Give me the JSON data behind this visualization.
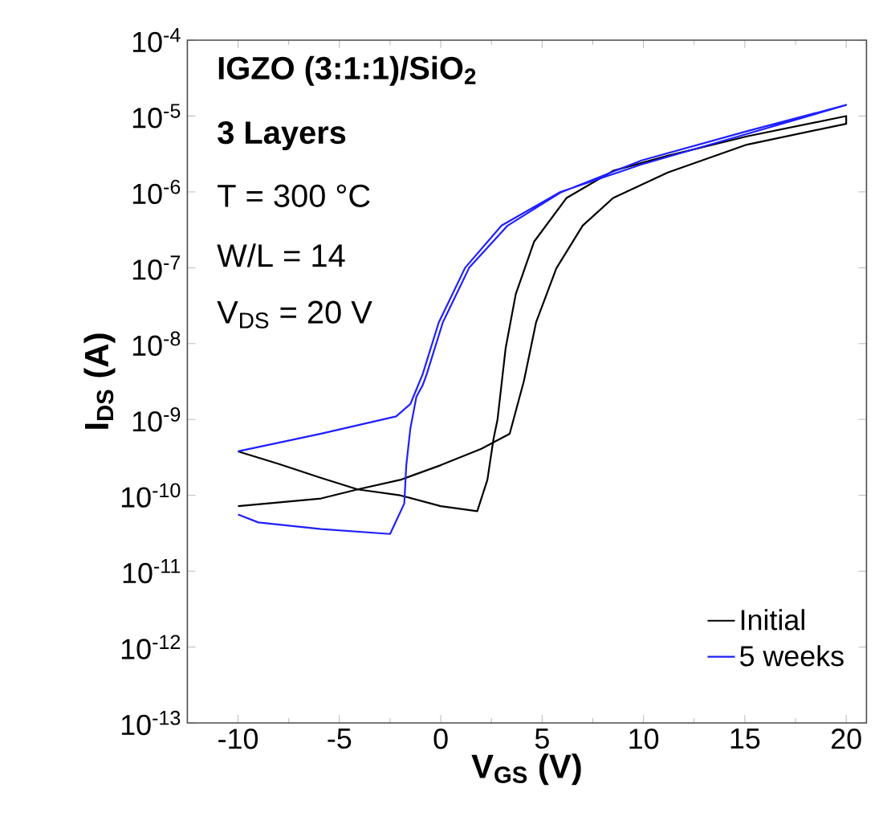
{
  "chart_data": {
    "type": "line",
    "xlabel": "**V$_{GS}$ (V)**",
    "ylabel": "**I$_{DS}$ (A)**",
    "annotations": [
      "**IGZO (3:1:1)/SiO$_{2}$**",
      "**3 Layers**",
      "T = 300 °C",
      "W/L = 14",
      "V$_{DS}$ = 20 V"
    ],
    "xlim": [
      -12.5,
      21
    ],
    "xticks": [
      -10,
      -5,
      0,
      5,
      10,
      15,
      20
    ],
    "ylim": [
      1e-13,
      0.0001
    ],
    "log": "y",
    "yticks": [
      {
        "value": 1e-13,
        "label": "10$^{-13}$"
      },
      {
        "value": 1e-12,
        "label": "10$^{-12}$"
      },
      {
        "value": 1e-11,
        "label": "10$^{-11}$"
      },
      {
        "value": 1e-10,
        "label": "10$^{-10}$"
      },
      {
        "value": 1e-09,
        "label": "10$^{-9}$"
      },
      {
        "value": 1e-08,
        "label": "10$^{-8}$"
      },
      {
        "value": 1e-07,
        "label": "10$^{-7}$"
      },
      {
        "value": 1e-06,
        "label": "10$^{-6}$"
      },
      {
        "value": 1e-05,
        "label": "10$^{-5}$"
      },
      {
        "value": 0.0001,
        "label": "10$^{-4}$"
      }
    ],
    "legend": "bottom right",
    "series": [
      {
        "name": "Initial",
        "color": "#000000",
        "x": [
          -10,
          -5.9,
          -4.1,
          -2.0,
          0,
          2.0,
          3.4,
          4.1,
          4.7,
          5.7,
          7.0,
          8.5,
          11.2,
          15.1,
          20,
          20,
          15.1,
          11.2,
          8.5,
          6.2,
          4.6,
          3.7,
          3.2,
          2.8,
          2.6,
          2.3,
          1.8,
          0,
          -2.0,
          -4.1,
          -5.9,
          -8.0,
          -10
        ],
        "values": [
          7.2e-11,
          9.1e-11,
          1.2e-10,
          1.6e-10,
          2.5e-10,
          4.1e-10,
          6.5e-10,
          3.2e-09,
          1.9e-08,
          9.8e-08,
          3.6e-07,
          8.3e-07,
          1.8e-06,
          4.2e-06,
          7.9e-06,
          1e-05,
          5.4e-06,
          3e-06,
          1.9e-06,
          8.3e-07,
          2.2e-07,
          4.5e-08,
          8.7e-09,
          1e-09,
          5.5e-10,
          1.6e-10,
          6.2e-11,
          7.2e-11,
          1e-10,
          1.2e-10,
          1.7e-10,
          2.6e-10,
          3.8e-10
        ]
      },
      {
        "name": "5 weeks",
        "color": "#1f1fff",
        "x": [
          -10,
          -9,
          -5.9,
          -2.5,
          -1.8,
          -1.7,
          -1.5,
          -1.2,
          -0.9,
          -0.7,
          0.1,
          1.4,
          3.3,
          5.9,
          9.9,
          15.1,
          20,
          20,
          15.1,
          9.9,
          5.9,
          3.0,
          1.2,
          -0.1,
          -0.9,
          -1.5,
          -2.2,
          -5.9,
          -10
        ],
        "values": [
          5.6e-11,
          4.4e-11,
          3.6e-11,
          3.1e-11,
          7.8e-11,
          2.5e-10,
          7.6e-10,
          2e-09,
          2.8e-09,
          3.9e-09,
          1.9e-08,
          1e-07,
          3.6e-07,
          9.8e-07,
          2.6e-06,
          6.3e-06,
          1.4e-05,
          1.4e-05,
          5.8e-06,
          2.3e-06,
          1e-06,
          3.6e-07,
          1e-07,
          1.9e-08,
          3.9e-09,
          1.6e-09,
          1.1e-09,
          6.5e-10,
          3.8e-10
        ]
      }
    ]
  }
}
